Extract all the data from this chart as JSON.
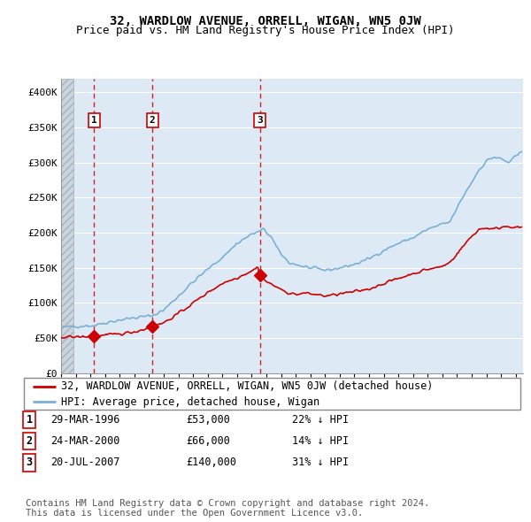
{
  "title": "32, WARDLOW AVENUE, ORRELL, WIGAN, WN5 0JW",
  "subtitle": "Price paid vs. HM Land Registry's House Price Index (HPI)",
  "ylabel_vals": [
    0,
    50000,
    100000,
    150000,
    200000,
    250000,
    300000,
    350000,
    400000
  ],
  "ylabel_labels": [
    "£0",
    "£50K",
    "£100K",
    "£150K",
    "£200K",
    "£250K",
    "£300K",
    "£350K",
    "£400K"
  ],
  "xlim_start": 1994.0,
  "xlim_end": 2025.5,
  "ylim": [
    0,
    420000
  ],
  "sale_dates": [
    1996.24,
    2000.23,
    2007.55
  ],
  "sale_prices": [
    53000,
    66000,
    140000
  ],
  "sale_labels": [
    "1",
    "2",
    "3"
  ],
  "legend_property": "32, WARDLOW AVENUE, ORRELL, WIGAN, WN5 0JW (detached house)",
  "legend_hpi": "HPI: Average price, detached house, Wigan",
  "table_rows": [
    [
      "1",
      "29-MAR-1996",
      "£53,000",
      "22% ↓ HPI"
    ],
    [
      "2",
      "24-MAR-2000",
      "£66,000",
      "14% ↓ HPI"
    ],
    [
      "3",
      "20-JUL-2007",
      "£140,000",
      "31% ↓ HPI"
    ]
  ],
  "footnote": "Contains HM Land Registry data © Crown copyright and database right 2024.\nThis data is licensed under the Open Government Licence v3.0.",
  "property_color": "#cc0000",
  "hpi_color": "#7ab0d4",
  "dashed_line_color": "#cc0000",
  "sale_marker_color": "#cc0000",
  "chart_bg": "#ddeaf5",
  "hatch_color": "#c0c8d0",
  "grid_color": "#ffffff",
  "title_fontsize": 10,
  "subtitle_fontsize": 9,
  "tick_fontsize": 8,
  "legend_fontsize": 8.5,
  "table_fontsize": 8.5,
  "footnote_fontsize": 7.5
}
